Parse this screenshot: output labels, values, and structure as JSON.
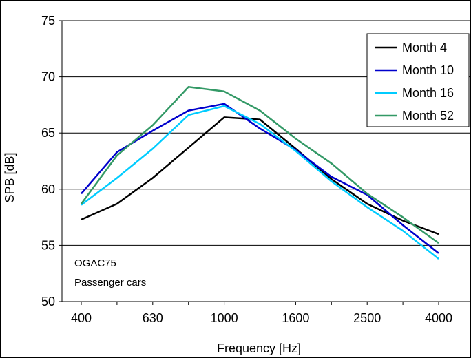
{
  "chart_data": {
    "type": "line",
    "xlabel": "Frequency [Hz]",
    "ylabel": "SPB [dB]",
    "x": [
      400,
      500,
      630,
      800,
      1000,
      1250,
      1600,
      2000,
      2500,
      3150,
      4000
    ],
    "x_tick_labels": [
      "400",
      "630",
      "1000",
      "1600",
      "2500",
      "4000"
    ],
    "x_scale": "log",
    "ylim": [
      50,
      75
    ],
    "y_ticks": [
      50,
      55,
      60,
      65,
      70,
      75
    ],
    "grid": "horizontal",
    "legend_position": "top-right",
    "series": [
      {
        "name": "Month 4",
        "color": "#000000",
        "values": [
          57.3,
          58.7,
          61.0,
          63.7,
          66.4,
          66.2,
          63.6,
          60.9,
          58.7,
          57.2,
          56.0
        ]
      },
      {
        "name": "Month 10",
        "color": "#0000cc",
        "values": [
          59.6,
          63.3,
          65.2,
          67.0,
          67.6,
          65.4,
          63.5,
          61.1,
          59.5,
          56.8,
          54.3
        ]
      },
      {
        "name": "Month 16",
        "color": "#00ccff",
        "values": [
          58.6,
          61.0,
          63.6,
          66.6,
          67.4,
          65.8,
          63.4,
          60.7,
          58.4,
          56.3,
          53.8
        ]
      },
      {
        "name": "Month 52",
        "color": "#339966",
        "values": [
          58.7,
          63.0,
          65.7,
          69.1,
          68.7,
          67.0,
          64.5,
          62.3,
          59.6,
          57.5,
          55.2
        ]
      }
    ],
    "annotations": [
      "OGAC75",
      "Passenger cars"
    ]
  }
}
